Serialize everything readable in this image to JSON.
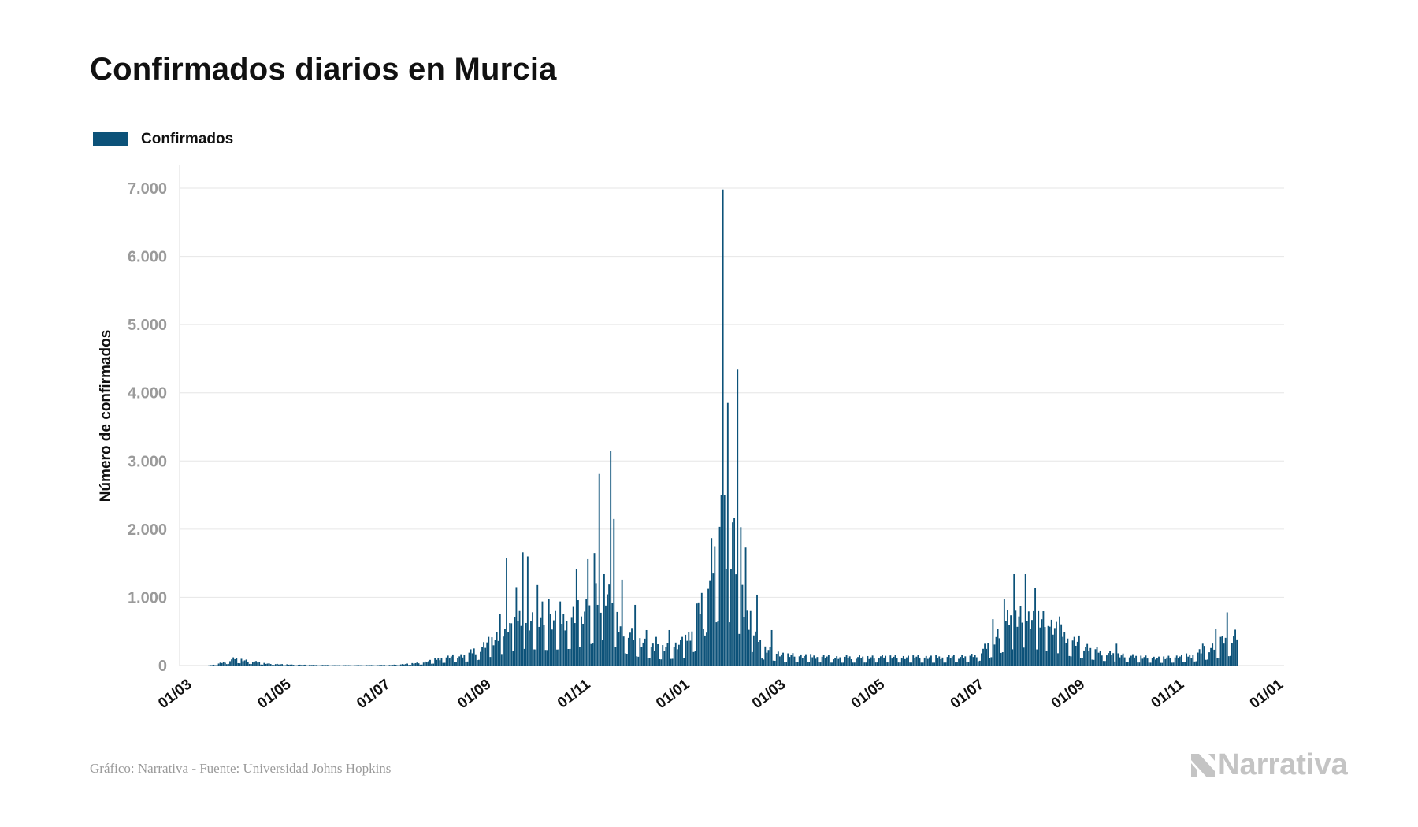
{
  "title": "Confirmados diarios en Murcia",
  "legend": {
    "label": "Confirmados",
    "color": "#0c5279"
  },
  "footer": {
    "source": "Gráfico: Narrativa - Fuente: Universidad Johns Hopkins",
    "brand": "Narrativa",
    "brand_icon": "narrativa-logo-icon"
  },
  "chart_data": {
    "type": "bar",
    "title": "Confirmados diarios en Murcia",
    "ylabel": "Número de confirmados",
    "xlabel": "",
    "series_name": "Confirmados",
    "color": "#0c5279",
    "ylim": [
      0,
      7000
    ],
    "yticks": [
      0,
      1000,
      2000,
      3000,
      4000,
      5000,
      6000,
      7000
    ],
    "ytick_labels": [
      "0",
      "1.000",
      "2.000",
      "3.000",
      "4.000",
      "5.000",
      "6.000",
      "7.000"
    ],
    "xtick_labels": [
      "01/03",
      "01/05",
      "01/07",
      "01/09",
      "01/11",
      "01/01",
      "01/03",
      "01/05",
      "01/07",
      "01/09",
      "01/11",
      "01/01"
    ],
    "xlim": [
      "2020-02-22",
      "2022-01-01"
    ],
    "xtick_dates": [
      "2020-03-01",
      "2020-05-01",
      "2020-07-01",
      "2020-09-01",
      "2020-11-01",
      "2021-01-01",
      "2021-03-01",
      "2021-05-01",
      "2021-07-01",
      "2021-09-01",
      "2021-11-01",
      "2022-01-01"
    ],
    "grid": true,
    "legend_position": "top-left",
    "anchors": [
      [
        "2020-03-10",
        0
      ],
      [
        "2020-03-15",
        15
      ],
      [
        "2020-03-22",
        60
      ],
      [
        "2020-03-27",
        110
      ],
      [
        "2020-04-02",
        80
      ],
      [
        "2020-04-15",
        30
      ],
      [
        "2020-05-01",
        12
      ],
      [
        "2020-06-01",
        5
      ],
      [
        "2020-07-01",
        8
      ],
      [
        "2020-07-20",
        40
      ],
      [
        "2020-08-01",
        110
      ],
      [
        "2020-08-15",
        150
      ],
      [
        "2020-08-25",
        250
      ],
      [
        "2020-09-05",
        450
      ],
      [
        "2020-09-20",
        700
      ],
      [
        "2020-10-05",
        650
      ],
      [
        "2020-10-20",
        700
      ],
      [
        "2020-11-01",
        900
      ],
      [
        "2020-11-10",
        1100
      ],
      [
        "2020-11-20",
        550
      ],
      [
        "2020-12-01",
        350
      ],
      [
        "2020-12-15",
        250
      ],
      [
        "2020-12-28",
        320
      ],
      [
        "2021-01-05",
        650
      ],
      [
        "2021-01-12",
        1500
      ],
      [
        "2021-01-20",
        2000
      ],
      [
        "2021-01-28",
        1700
      ],
      [
        "2021-02-05",
        700
      ],
      [
        "2021-02-15",
        250
      ],
      [
        "2021-03-01",
        150
      ],
      [
        "2021-04-01",
        120
      ],
      [
        "2021-05-01",
        130
      ],
      [
        "2021-06-01",
        120
      ],
      [
        "2021-06-25",
        140
      ],
      [
        "2021-07-05",
        350
      ],
      [
        "2021-07-15",
        650
      ],
      [
        "2021-07-25",
        750
      ],
      [
        "2021-08-10",
        600
      ],
      [
        "2021-08-25",
        350
      ],
      [
        "2021-09-10",
        200
      ],
      [
        "2021-10-01",
        130
      ],
      [
        "2021-10-20",
        110
      ],
      [
        "2021-11-05",
        150
      ],
      [
        "2021-11-20",
        300
      ],
      [
        "2021-12-03",
        450
      ]
    ],
    "spikes": [
      [
        "2020-08-21",
        250
      ],
      [
        "2020-08-30",
        420
      ],
      [
        "2020-09-03",
        380
      ],
      [
        "2020-09-06",
        760
      ],
      [
        "2020-09-10",
        1580
      ],
      [
        "2020-09-13",
        620
      ],
      [
        "2020-09-16",
        1150
      ],
      [
        "2020-09-20",
        1660
      ],
      [
        "2020-09-23",
        1600
      ],
      [
        "2020-09-29",
        1180
      ],
      [
        "2020-10-02",
        940
      ],
      [
        "2020-10-06",
        980
      ],
      [
        "2020-10-13",
        940
      ],
      [
        "2020-10-23",
        1410
      ],
      [
        "2020-10-26",
        720
      ],
      [
        "2020-10-30",
        1560
      ],
      [
        "2020-11-03",
        1650
      ],
      [
        "2020-11-06",
        2810
      ],
      [
        "2020-11-09",
        1340
      ],
      [
        "2020-11-13",
        3150
      ],
      [
        "2020-11-15",
        2150
      ],
      [
        "2020-11-20",
        1260
      ],
      [
        "2020-11-28",
        890
      ],
      [
        "2020-12-05",
        520
      ],
      [
        "2020-12-11",
        420
      ],
      [
        "2020-12-19",
        520
      ],
      [
        "2020-12-27",
        420
      ],
      [
        "2021-01-05",
        910
      ],
      [
        "2021-01-09",
        540
      ],
      [
        "2021-01-13",
        1240
      ],
      [
        "2021-01-21",
        6980
      ],
      [
        "2021-01-22",
        2500
      ],
      [
        "2021-01-24",
        3850
      ],
      [
        "2021-01-27",
        2100
      ],
      [
        "2021-01-28",
        2160
      ],
      [
        "2021-01-30",
        4340
      ],
      [
        "2021-02-01",
        2030
      ],
      [
        "2021-02-04",
        1730
      ],
      [
        "2021-02-07",
        800
      ],
      [
        "2021-02-11",
        1040
      ],
      [
        "2021-02-20",
        520
      ],
      [
        "2021-07-06",
        680
      ],
      [
        "2021-07-13",
        970
      ],
      [
        "2021-07-19",
        1340
      ],
      [
        "2021-07-26",
        1340
      ],
      [
        "2021-08-01",
        1140
      ],
      [
        "2021-08-09",
        580
      ],
      [
        "2021-08-16",
        720
      ],
      [
        "2021-08-28",
        440
      ],
      [
        "2021-09-20",
        320
      ],
      [
        "2021-11-12",
        320
      ],
      [
        "2021-11-20",
        540
      ],
      [
        "2021-11-23",
        420
      ],
      [
        "2021-11-27",
        780
      ]
    ]
  }
}
